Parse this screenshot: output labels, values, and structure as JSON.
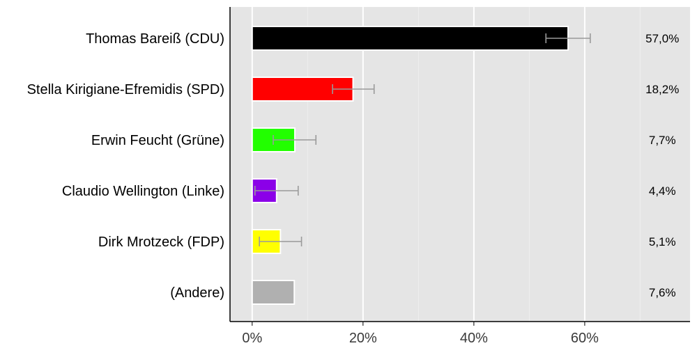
{
  "chart_data": {
    "type": "bar",
    "orientation": "horizontal",
    "categories": [
      "Thomas Bareiß (CDU)",
      "Stella Kirigiane-Efremidis (SPD)",
      "Erwin Feucht (Grüne)",
      "Claudio Wellington (Linke)",
      "Dirk Mrotzeck (FDP)",
      "(Andere)"
    ],
    "values": [
      57.0,
      18.2,
      7.7,
      4.4,
      5.1,
      7.6
    ],
    "value_labels": [
      "57,0%",
      "18,2%",
      "7,7%",
      "4,4%",
      "5,1%",
      "7,6%"
    ],
    "error_bars": [
      [
        53.0,
        61.0
      ],
      [
        14.5,
        22.0
      ],
      [
        3.8,
        11.5
      ],
      [
        0.5,
        8.3
      ],
      [
        1.3,
        8.9
      ],
      null
    ],
    "colors": [
      "#000000",
      "#ff0000",
      "#22ff00",
      "#8b00e8",
      "#ffff00",
      "#b0b0b0"
    ],
    "x_ticks": [
      0,
      20,
      40,
      60
    ],
    "x_tick_labels": [
      "0%",
      "20%",
      "40%",
      "60%"
    ],
    "xlim": [
      -4,
      79
    ],
    "grid": true,
    "background": "#e5e5e5",
    "error_bar_color": "#9a9a9a"
  }
}
